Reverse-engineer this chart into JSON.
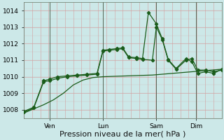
{
  "background_color": "#cce8e8",
  "grid_color_h": "#d4a0a0",
  "grid_color_v": "#d4a0a0",
  "line_color": "#1a5c1a",
  "title": "Pression niveau de la mer( hPa )",
  "title_fontsize": 8,
  "tick_fontsize": 6.5,
  "ylim": [
    1007.5,
    1014.5
  ],
  "yticks": [
    1008,
    1009,
    1010,
    1011,
    1012,
    1013,
    1014
  ],
  "day_labels": [
    "Ven",
    "Lun",
    "Sam",
    "Dim"
  ],
  "day_positions": [
    0.13,
    0.4,
    0.67,
    0.87
  ],
  "xlim": [
    0,
    1
  ],
  "series1_x": [
    0.0,
    0.05,
    0.1,
    0.15,
    0.2,
    0.25,
    0.3,
    0.35,
    0.4,
    0.45,
    0.5,
    0.55,
    0.6,
    0.65,
    0.7,
    0.75,
    0.8,
    0.85,
    0.9,
    0.95,
    1.0
  ],
  "series1_y": [
    1007.8,
    1008.05,
    1008.3,
    1008.6,
    1009.0,
    1009.5,
    1009.8,
    1009.95,
    1010.0,
    1010.02,
    1010.04,
    1010.06,
    1010.08,
    1010.1,
    1010.15,
    1010.2,
    1010.25,
    1010.3,
    1010.35,
    1010.4,
    1010.45
  ],
  "series2_x": [
    0.0,
    0.05,
    0.1,
    0.13,
    0.17,
    0.22,
    0.27,
    0.32,
    0.37,
    0.4,
    0.43,
    0.47,
    0.5,
    0.53,
    0.57,
    0.6,
    0.65,
    0.67,
    0.7,
    0.73,
    0.77,
    0.82,
    0.85,
    0.88,
    0.92,
    0.96,
    1.0
  ],
  "series2_y": [
    1007.85,
    1008.1,
    1009.7,
    1009.75,
    1009.9,
    1010.0,
    1010.05,
    1010.1,
    1010.15,
    1011.55,
    1011.6,
    1011.65,
    1011.7,
    1011.15,
    1011.1,
    1011.05,
    1011.0,
    1013.0,
    1012.25,
    1011.0,
    1010.45,
    1011.0,
    1011.1,
    1010.4,
    1010.4,
    1010.3,
    1010.4
  ],
  "series3_x": [
    0.0,
    0.05,
    0.1,
    0.13,
    0.17,
    0.22,
    0.27,
    0.32,
    0.37,
    0.4,
    0.43,
    0.47,
    0.5,
    0.53,
    0.57,
    0.6,
    0.63,
    0.67,
    0.7,
    0.73,
    0.77,
    0.82,
    0.85,
    0.88,
    0.92,
    0.96,
    1.0
  ],
  "series3_y": [
    1007.9,
    1008.15,
    1009.75,
    1009.85,
    1010.0,
    1010.05,
    1010.1,
    1010.15,
    1010.2,
    1011.6,
    1011.65,
    1011.7,
    1011.75,
    1011.2,
    1011.15,
    1011.1,
    1013.9,
    1013.2,
    1012.3,
    1011.05,
    1010.5,
    1011.1,
    1010.9,
    1010.2,
    1010.3,
    1010.2,
    1010.45
  ]
}
